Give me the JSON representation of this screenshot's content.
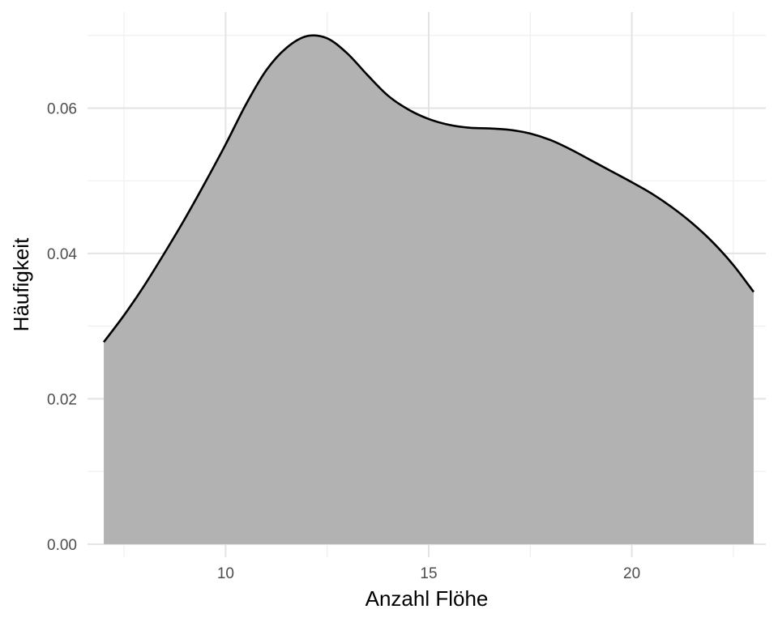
{
  "chart_data": {
    "type": "area",
    "xlabel": "Anzahl Flöhe",
    "ylabel": "Häufigkeit",
    "xlim": [
      6.6,
      23.3
    ],
    "ylim": [
      -0.0018,
      0.0732
    ],
    "x_ticks": [
      10,
      15,
      20
    ],
    "x_tick_labels": [
      "10",
      "15",
      "20"
    ],
    "x_minor_ticks": [
      7.5,
      12.5,
      17.5,
      22.5
    ],
    "y_ticks": [
      0,
      0.02,
      0.04,
      0.06
    ],
    "y_tick_labels": [
      "0.00",
      "0.02",
      "0.04",
      "0.06"
    ],
    "y_minor_ticks": [
      0.01,
      0.03,
      0.05,
      0.07
    ],
    "grid": true,
    "legend": "none",
    "fill_color": "#b2b2b2",
    "line_color": "#000000",
    "series": [
      {
        "x": [
          7,
          7.5,
          8,
          8.5,
          9,
          9.5,
          10,
          10.5,
          11,
          11.5,
          12,
          12.5,
          13,
          13.5,
          14,
          14.5,
          15,
          15.5,
          16,
          16.5,
          17,
          17.5,
          18,
          18.5,
          19,
          19.5,
          20,
          20.5,
          21,
          21.5,
          22,
          22.5,
          23
        ],
        "y": [
          0.0278,
          0.0315,
          0.0356,
          0.0401,
          0.0448,
          0.0498,
          0.055,
          0.0605,
          0.0652,
          0.0683,
          0.0699,
          0.0696,
          0.0675,
          0.0645,
          0.0617,
          0.0598,
          0.0585,
          0.0577,
          0.0573,
          0.0572,
          0.057,
          0.0565,
          0.0556,
          0.0543,
          0.0528,
          0.0513,
          0.0498,
          0.0482,
          0.0463,
          0.0441,
          0.0415,
          0.0384,
          0.0347
        ]
      }
    ]
  }
}
